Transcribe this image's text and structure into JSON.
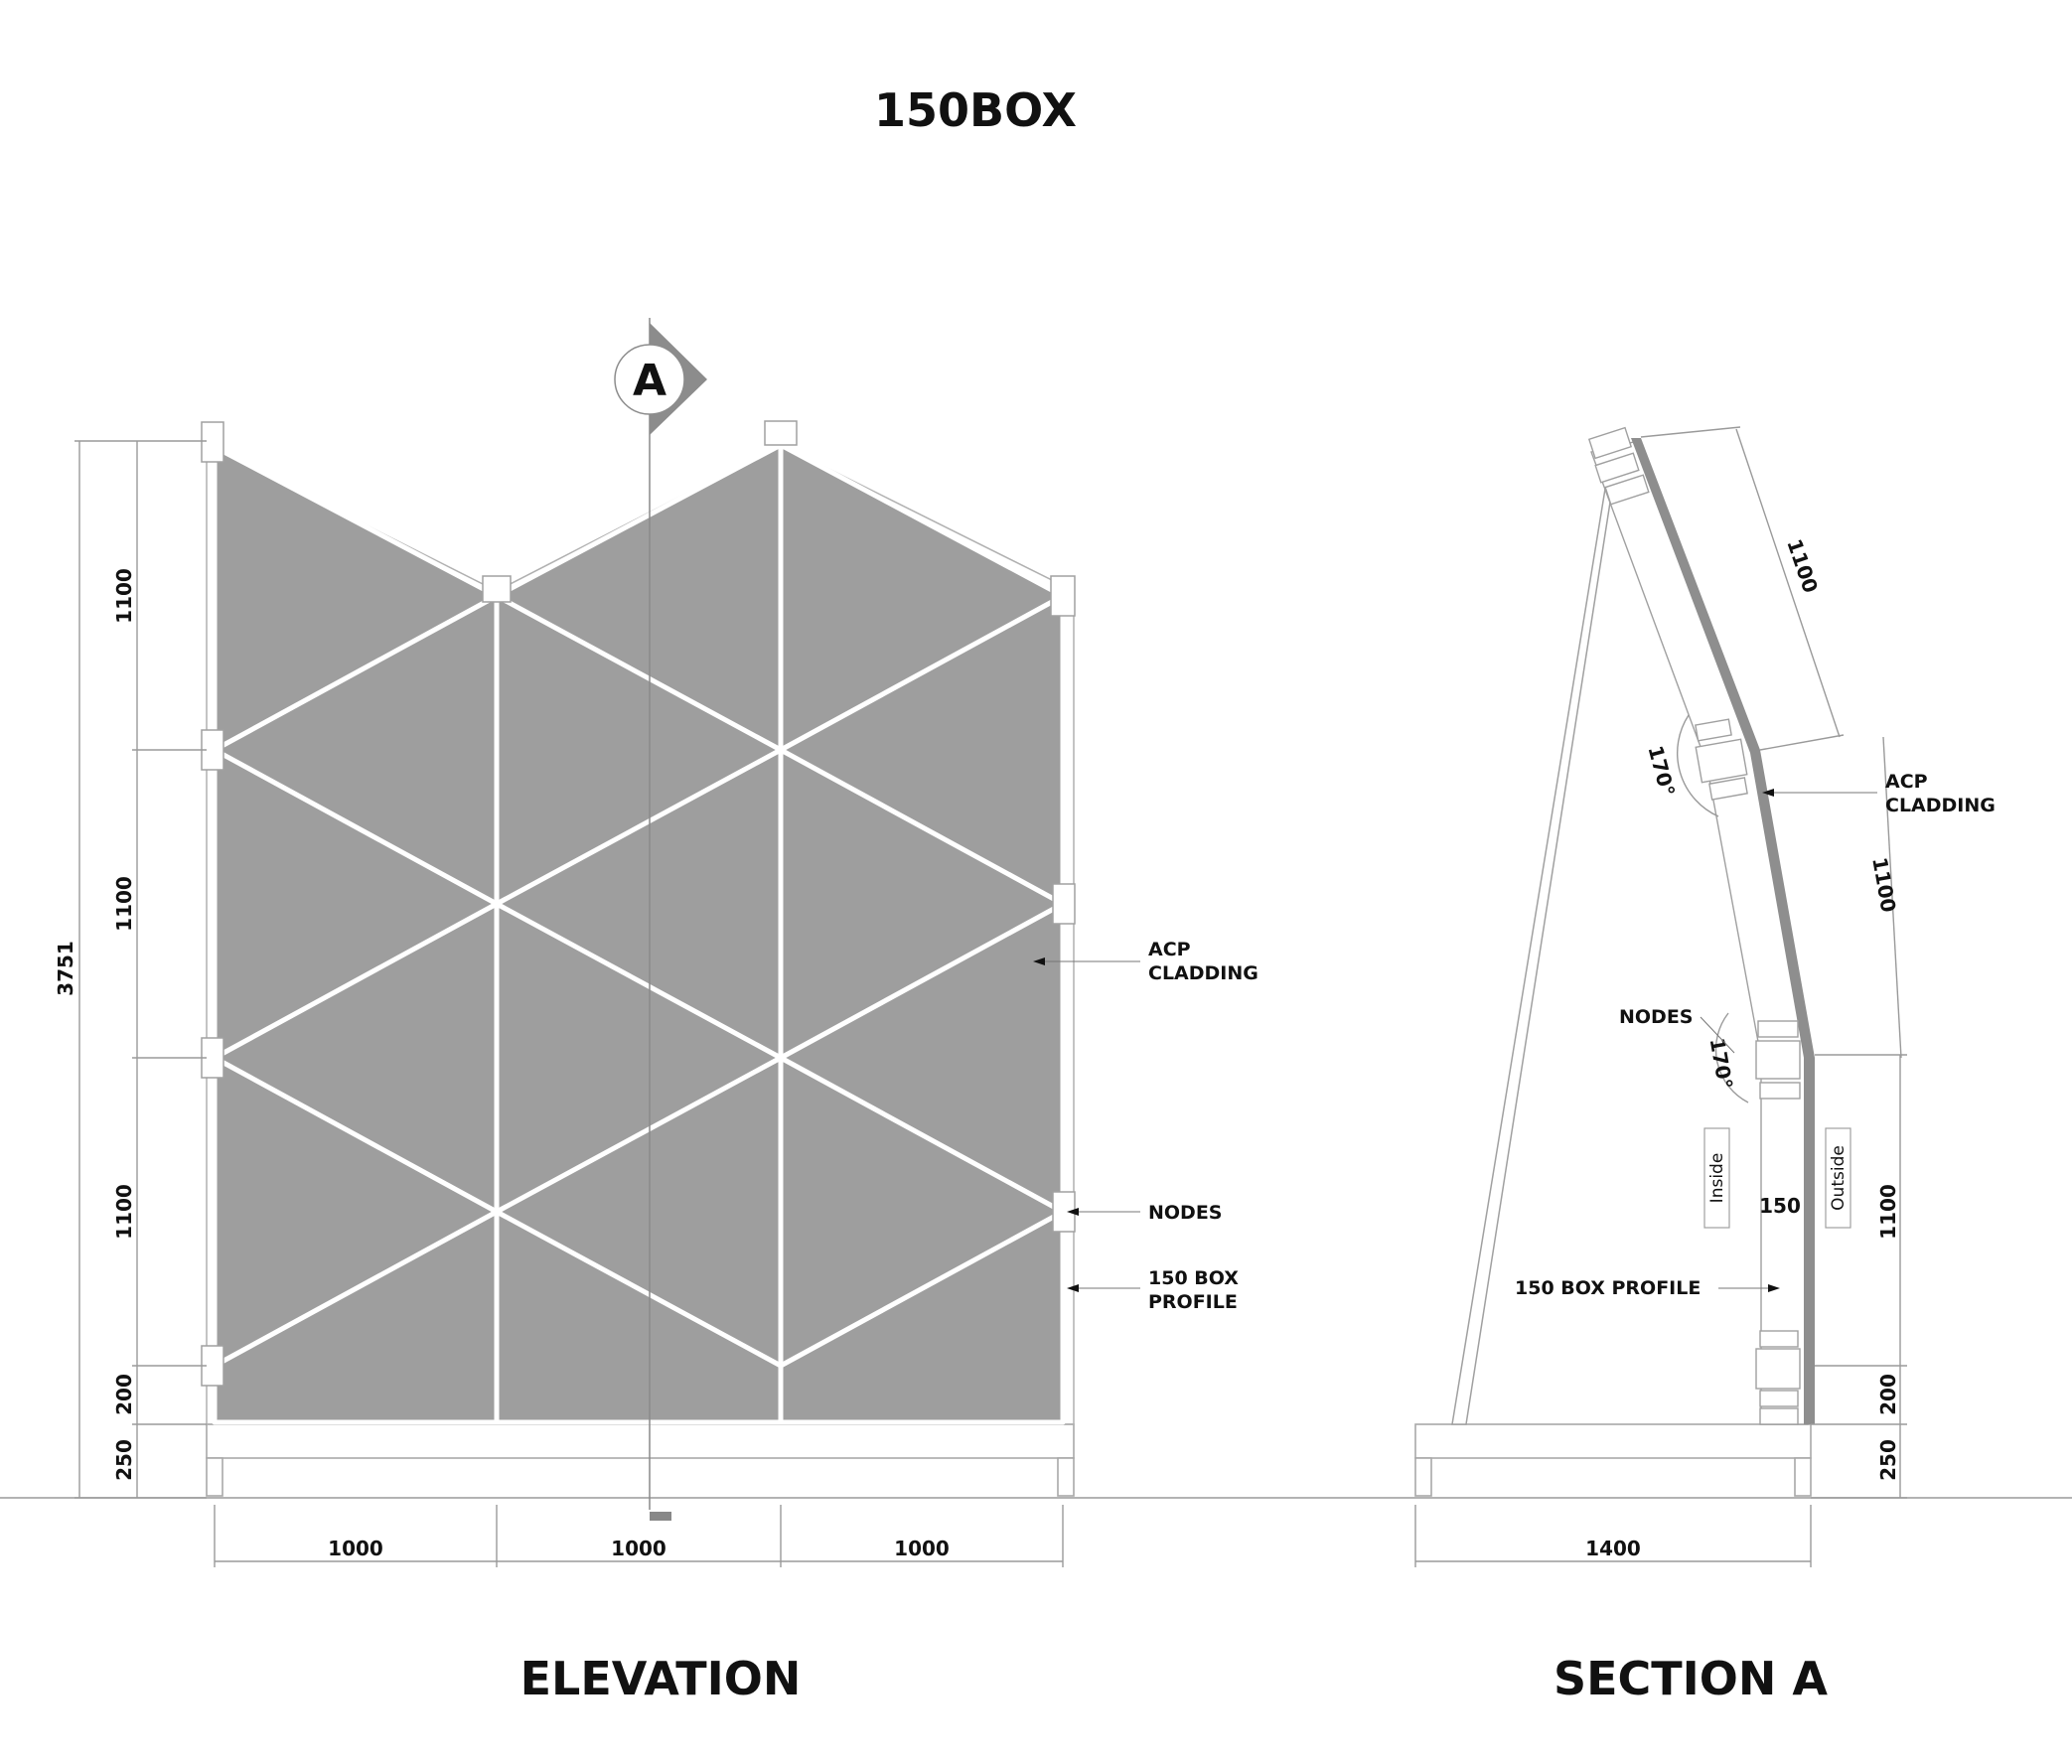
{
  "title": "150BOX",
  "section_marker": "A",
  "elevation": {
    "heading": "ELEVATION",
    "total_height": "3751",
    "heights": [
      "1100",
      "1100",
      "1100",
      "200",
      "250"
    ],
    "widths": [
      "1000",
      "1000",
      "1000"
    ],
    "callouts": {
      "acp_1": "ACP",
      "acp_2": "CLADDING",
      "nodes": "NODES",
      "profile_1": "150 BOX",
      "profile_2": "PROFILE"
    }
  },
  "section": {
    "heading": "SECTION A",
    "slope_1": "1100",
    "slope_2": "1100",
    "heights": [
      "1100",
      "200",
      "250"
    ],
    "angle_top": "170°",
    "angle_bottom": "170°",
    "thickness": "150",
    "width": "1400",
    "inside": "Inside",
    "outside": "Outside",
    "callouts": {
      "acp_1": "ACP",
      "acp_2": "CLADDING",
      "nodes": "NODES",
      "profile": "150 BOX PROFILE"
    }
  }
}
